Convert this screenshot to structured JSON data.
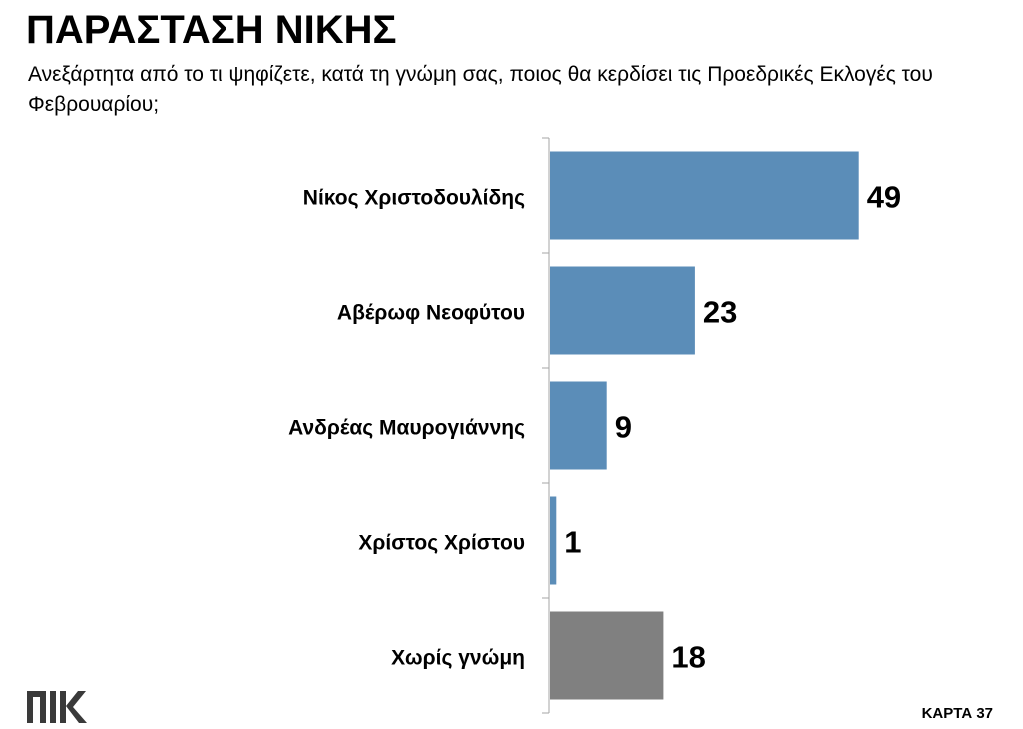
{
  "header": {
    "title": "ΠΑΡΑΣΤΑΣΗ ΝΙΚΗΣ",
    "subtitle": "Ανεξάρτητα από το τι ψηφίζετε, κατά τη γνώμη σας, ποιος θα κερδίσει τις Προεδρικές Εκλογές του Φεβρουαρίου;"
  },
  "footer": {
    "logo_text": "ΠΙΚ",
    "card_label": "ΚΑΡΤΑ 37"
  },
  "chart_data": {
    "type": "bar",
    "orientation": "horizontal",
    "categories": [
      "Νίκος Χριστοδουλίδης",
      "Αβέρωφ Νεοφύτου",
      "Ανδρέας Μαυρογιάννης",
      "Χρίστος Χρίστου",
      "Χωρίς γνώμη"
    ],
    "values": [
      49,
      23,
      9,
      1,
      18
    ],
    "bar_colors": [
      "#5b8db8",
      "#5b8db8",
      "#5b8db8",
      "#5b8db8",
      "#808080"
    ],
    "data_labels": [
      "49",
      "23",
      "9",
      "1",
      "18"
    ],
    "xlim": [
      0,
      100
    ],
    "grid": false,
    "legend": "none"
  }
}
